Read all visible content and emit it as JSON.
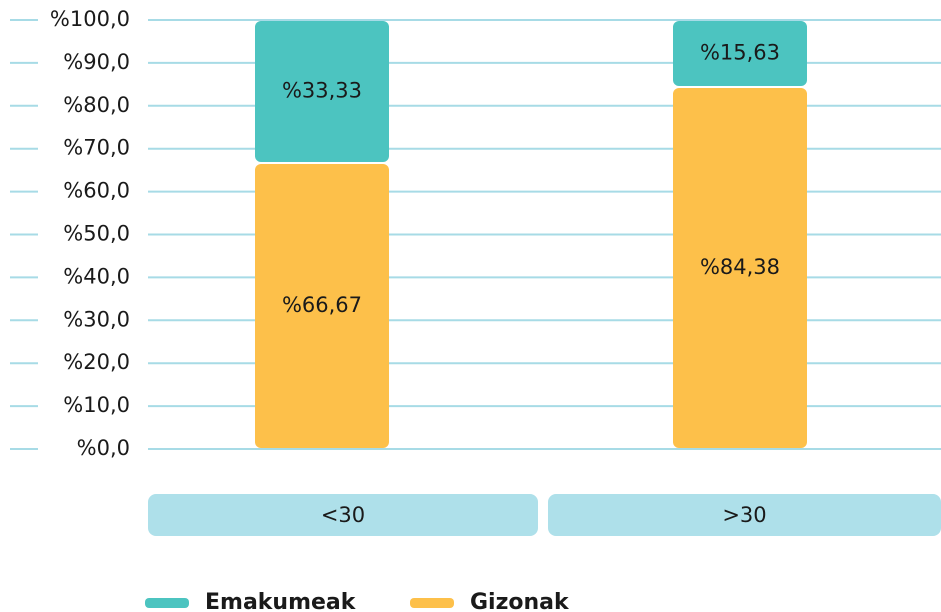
{
  "chart_data": {
    "type": "stacked_bar",
    "categories": [
      "<30",
      ">30"
    ],
    "series": [
      {
        "name": "Emakumeak",
        "color": "#4cc4c0",
        "values": [
          33.33,
          15.63
        ],
        "value_labels": [
          "%33,33",
          "%15,63"
        ]
      },
      {
        "name": "Gizonak",
        "color": "#fdc04a",
        "values": [
          66.67,
          84.38
        ],
        "value_labels": [
          "%66,67",
          "%84,38"
        ]
      }
    ],
    "ylim": [
      0,
      100
    ],
    "yticks": [
      {
        "value": 0,
        "label": "%0,0"
      },
      {
        "value": 10,
        "label": "%10,0"
      },
      {
        "value": 20,
        "label": "%20,0"
      },
      {
        "value": 30,
        "label": "%30,0"
      },
      {
        "value": 40,
        "label": "%40,0"
      },
      {
        "value": 50,
        "label": "%50,0"
      },
      {
        "value": 60,
        "label": "%60,0"
      },
      {
        "value": 70,
        "label": "%70,0"
      },
      {
        "value": 80,
        "label": "%80,0"
      },
      {
        "value": 90,
        "label": "%90,0"
      },
      {
        "value": 100,
        "label": "%100,0"
      }
    ],
    "grid": true,
    "legend": "bottom"
  }
}
